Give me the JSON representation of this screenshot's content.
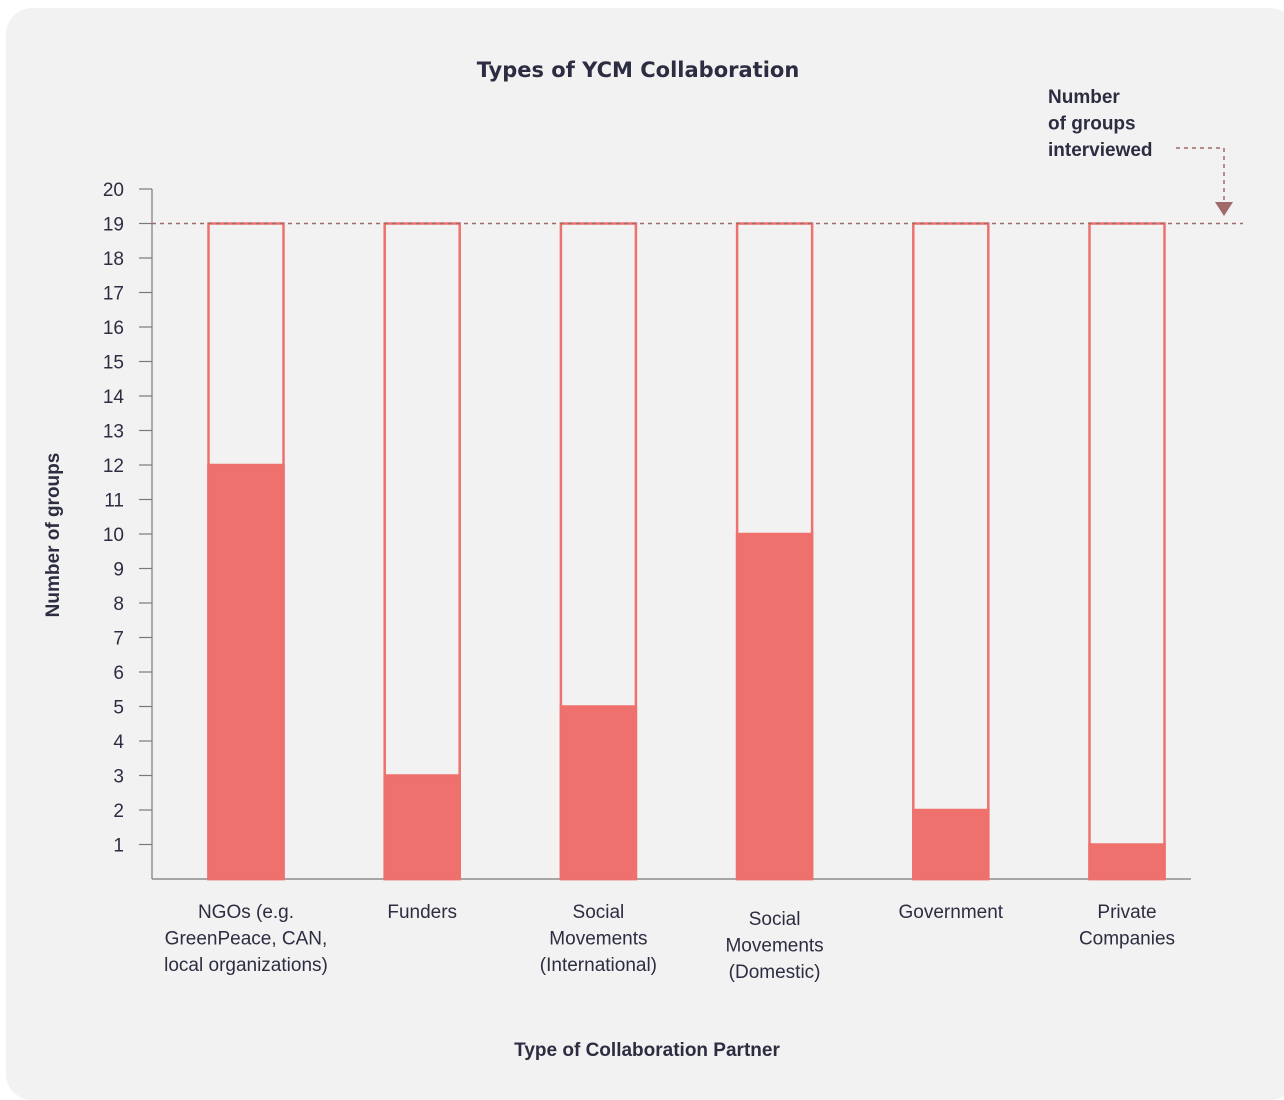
{
  "chart_data": {
    "type": "bar",
    "title": "Types of YCM Collaboration",
    "xlabel": "Type of Collaboration Partner",
    "ylabel": "Number of groups",
    "ylim": [
      0,
      20
    ],
    "yticks": [
      1,
      2,
      3,
      4,
      5,
      6,
      7,
      8,
      9,
      10,
      11,
      12,
      13,
      14,
      15,
      16,
      17,
      18,
      19,
      20
    ],
    "categories": [
      [
        "NGOs (e.g.",
        "GreenPeace, CAN,",
        "local organizations)"
      ],
      [
        "Funders"
      ],
      [
        "Social",
        "Movements",
        "(International)"
      ],
      [
        "Social",
        "Movements",
        "(Domestic)"
      ],
      [
        "Government"
      ],
      [
        "Private",
        "Companies"
      ]
    ],
    "values": [
      12,
      3,
      5,
      10,
      2,
      1
    ],
    "total": 19,
    "reference_line": {
      "value": 19,
      "label": [
        "Number",
        "of groups",
        "interviewed"
      ]
    },
    "colors": {
      "bar_fill": "#ee716d",
      "bar_outline": "#ee716d",
      "reference_line": "#a06a6a",
      "text": "#2d2d42",
      "axis": "#7a7a7a"
    },
    "grid": false
  }
}
